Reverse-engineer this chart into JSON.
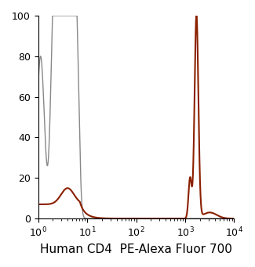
{
  "title": "",
  "xlabel": "Human CD4  PE-Alexa Fluor 700",
  "ylabel": "",
  "xlim": [
    1,
    10000
  ],
  "ylim": [
    0,
    100
  ],
  "yticks": [
    0,
    20,
    40,
    60,
    80,
    100
  ],
  "gray_color": "#888888",
  "brown_color": "#8B2000",
  "gray_linewidth": 1.0,
  "brown_linewidth": 1.5,
  "xlabel_fontsize": 11,
  "tick_fontsize": 9,
  "background_color": "#ffffff"
}
